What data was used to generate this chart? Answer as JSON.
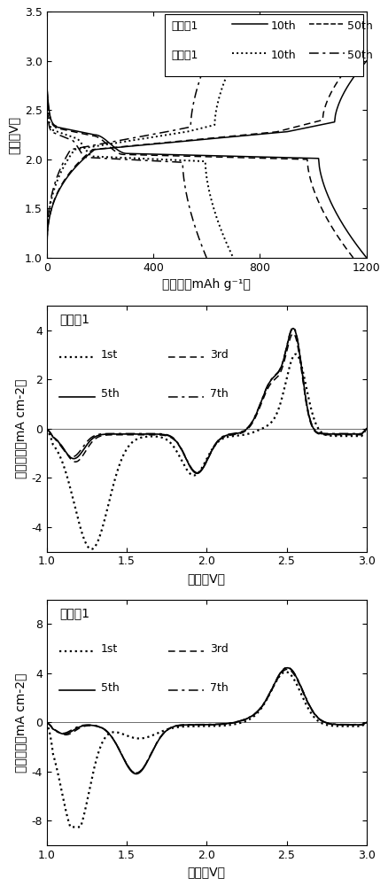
{
  "plot1": {
    "xlabel": "比容量（mAh g-1）",
    "ylabel": "电压（V）",
    "xlim": [
      0,
      1200
    ],
    "ylim": [
      1.0,
      3.5
    ],
    "xticks": [
      0,
      400,
      800,
      1200
    ],
    "yticks": [
      1.0,
      1.5,
      2.0,
      2.5,
      3.0,
      3.5
    ],
    "leg_label1": "实施例1",
    "leg_label2": "对比例1",
    "leg_10th": "10th",
    "leg_50th": "50th"
  },
  "plot2": {
    "title": "对比例1",
    "xlabel": "电压（V）",
    "ylabel": "电流密度（mA cm-2）",
    "xlim": [
      1.0,
      3.0
    ],
    "ylim": [
      -5,
      5
    ],
    "xticks": [
      1.0,
      1.5,
      2.0,
      2.5,
      3.0
    ],
    "yticks": [
      -4,
      -2,
      0,
      2,
      4
    ],
    "leg_1st": "1st",
    "leg_3rd": "3rd",
    "leg_5th": "5th",
    "leg_7th": "7th"
  },
  "plot3": {
    "title": "实施例1",
    "xlabel": "电压（V）",
    "ylabel": "电流密度（mA cm-2）",
    "xlim": [
      1.0,
      3.0
    ],
    "ylim": [
      -10,
      10
    ],
    "xticks": [
      1.0,
      1.5,
      2.0,
      2.5,
      3.0
    ],
    "yticks": [
      -8,
      -4,
      0,
      4,
      8
    ],
    "leg_1st": "1st",
    "leg_3rd": "3rd",
    "leg_5th": "5th",
    "leg_7th": "7th"
  }
}
